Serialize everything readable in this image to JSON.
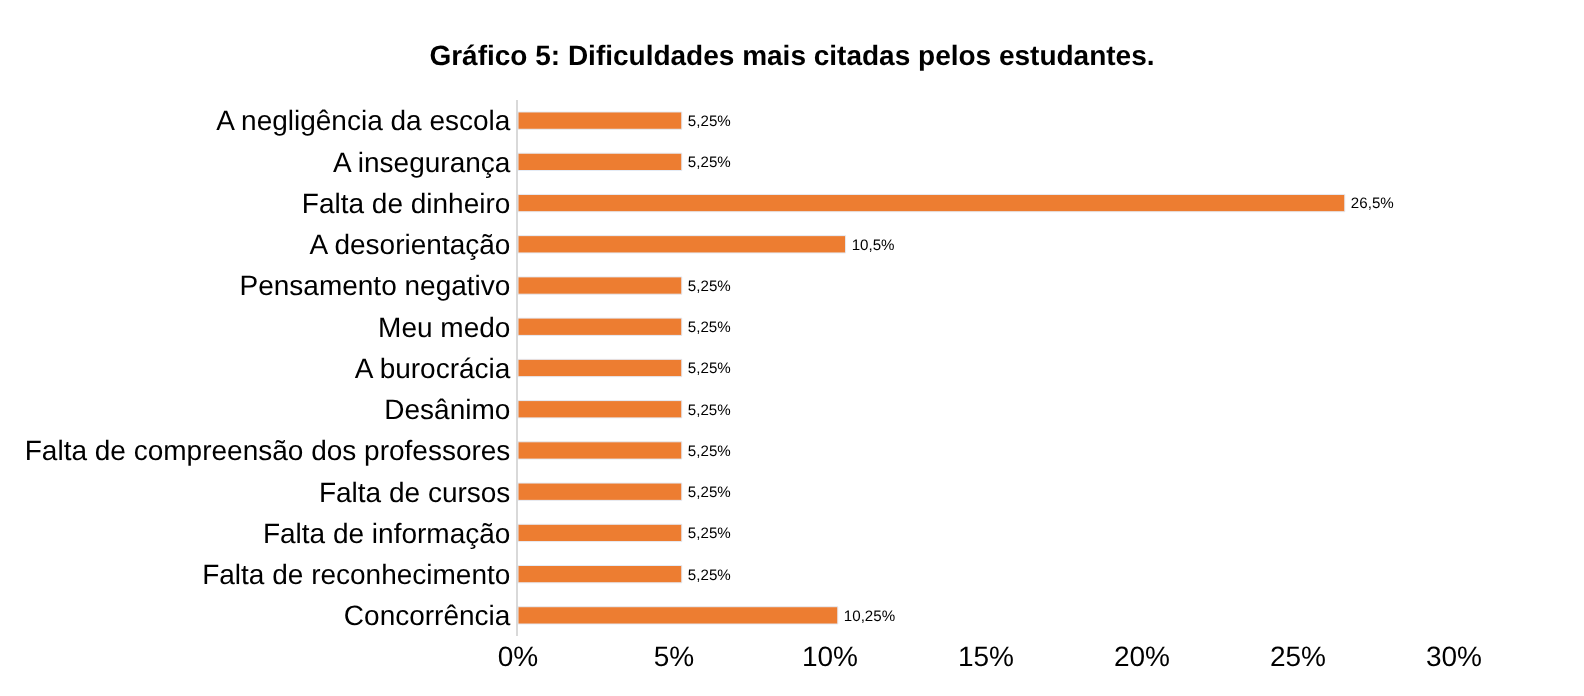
{
  "chart_data": {
    "type": "bar",
    "orientation": "horizontal",
    "title": "Gráfico 5: Dificuldades mais citadas pelos estudantes.",
    "categories": [
      "A negligência da escola",
      "A insegurança",
      "Falta de dinheiro",
      "A desorientação",
      "Pensamento negativo",
      "Meu medo",
      "A burocrácia",
      "Desânimo",
      "Falta de compreensão dos professores",
      "Falta de cursos",
      "Falta de informação",
      "Falta de reconhecimento",
      "Concorrência"
    ],
    "values": [
      5.25,
      5.25,
      26.5,
      10.5,
      5.25,
      5.25,
      5.25,
      5.25,
      5.25,
      5.25,
      5.25,
      5.25,
      10.25
    ],
    "value_labels": [
      "5,25%",
      "5,25%",
      "26,5%",
      "10,5%",
      "5,25%",
      "5,25%",
      "5,25%",
      "5,25%",
      "5,25%",
      "5,25%",
      "5,25%",
      "5,25%",
      "10,25%"
    ],
    "color": "#ed7d31",
    "xlim": [
      0,
      30
    ],
    "xticks": [
      {
        "value": 0,
        "label": "0%"
      },
      {
        "value": 5,
        "label": "5%"
      },
      {
        "value": 10,
        "label": "10%"
      },
      {
        "value": 15,
        "label": "15%"
      },
      {
        "value": 20,
        "label": "20%"
      },
      {
        "value": 25,
        "label": "25%"
      },
      {
        "value": 30,
        "label": "30%"
      }
    ],
    "grid": false,
    "legend": false
  }
}
